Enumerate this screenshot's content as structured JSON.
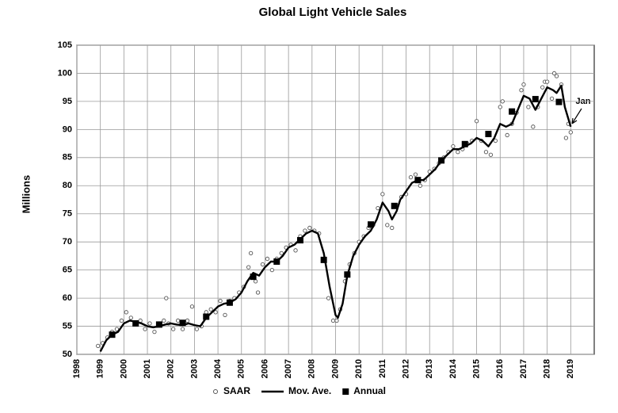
{
  "chart_data": {
    "type": "line",
    "title": "Global Light Vehicle Sales",
    "y_label": "Millions",
    "xlim": [
      1998,
      2020
    ],
    "xticks": [
      1998,
      1999,
      2000,
      2001,
      2002,
      2003,
      2004,
      2005,
      2006,
      2007,
      2008,
      2009,
      2010,
      2011,
      2012,
      2013,
      2014,
      2015,
      2016,
      2017,
      2018,
      2019
    ],
    "ylim": [
      50,
      105
    ],
    "yticks": [
      50,
      55,
      60,
      65,
      70,
      75,
      80,
      85,
      90,
      95,
      100,
      105
    ],
    "grid": true,
    "legend": "bottom",
    "annotation": "Jan",
    "series": [
      {
        "name": "SAAR",
        "marker": "circle",
        "color": "#555555",
        "x": [
          1998.9,
          1999.1,
          1999.3,
          1999.5,
          1999.7,
          1999.9,
          2000.1,
          2000.3,
          2000.5,
          2000.7,
          2000.9,
          2001.1,
          2001.3,
          2001.5,
          2001.7,
          2001.8,
          2001.9,
          2002.1,
          2002.3,
          2002.5,
          2002.7,
          2002.9,
          2003.1,
          2003.3,
          2003.5,
          2003.7,
          2003.9,
          2004.1,
          2004.3,
          2004.5,
          2004.7,
          2004.9,
          2005.1,
          2005.3,
          2005.4,
          2005.6,
          2005.7,
          2005.9,
          2006.1,
          2006.3,
          2006.5,
          2006.7,
          2006.9,
          2007.1,
          2007.3,
          2007.5,
          2007.7,
          2007.9,
          2008.1,
          2008.3,
          2008.5,
          2008.7,
          2008.9,
          2009.05,
          2009.2,
          2009.4,
          2009.6,
          2009.8,
          2010.0,
          2010.2,
          2010.4,
          2010.6,
          2010.8,
          2011.0,
          2011.2,
          2011.4,
          2011.6,
          2011.8,
          2012.0,
          2012.2,
          2012.4,
          2012.6,
          2012.8,
          2013.0,
          2013.2,
          2013.4,
          2013.6,
          2013.8,
          2014.0,
          2014.2,
          2014.4,
          2014.6,
          2014.8,
          2015.0,
          2015.2,
          2015.4,
          2015.6,
          2015.8,
          2016.0,
          2016.1,
          2016.3,
          2016.5,
          2016.7,
          2016.9,
          2017.0,
          2017.2,
          2017.4,
          2017.6,
          2017.8,
          2017.9,
          2018.0,
          2018.2,
          2018.3,
          2018.4,
          2018.6,
          2018.8,
          2018.9,
          2019.0
        ],
        "values": [
          51.5,
          52,
          53,
          54,
          54.5,
          56,
          57.5,
          56.5,
          55.5,
          56,
          54.5,
          55.5,
          54,
          55.5,
          56,
          60,
          55.5,
          54.5,
          56,
          54.5,
          56,
          58.5,
          54.5,
          55,
          57.5,
          58,
          57.5,
          59.5,
          57,
          59.5,
          60,
          61,
          62,
          65.5,
          68,
          63,
          61,
          66,
          67,
          65,
          67,
          68,
          69,
          69.5,
          68.5,
          71,
          72,
          72.5,
          72,
          71.5,
          67,
          60,
          56,
          56,
          58,
          63,
          66,
          68,
          70,
          71,
          72.5,
          73,
          76,
          78.5,
          73,
          72.5,
          76.5,
          78,
          78.5,
          81.5,
          82,
          80,
          81,
          82.5,
          83,
          84,
          85,
          86,
          87,
          86,
          86.5,
          87.5,
          88,
          91.5,
          88,
          86,
          85.5,
          88,
          94,
          95,
          89,
          91,
          93,
          97,
          98,
          94,
          90.5,
          94,
          97.5,
          98.5,
          98.5,
          95.5,
          100,
          99.5,
          98,
          88.5,
          91,
          89.5
        ]
      },
      {
        "name": "Mov. Ave.",
        "color": "#000000",
        "x": [
          1999.0,
          1999.25,
          1999.5,
          1999.75,
          2000.0,
          2000.25,
          2000.5,
          2000.75,
          2001.0,
          2001.25,
          2001.5,
          2001.75,
          2002.0,
          2002.25,
          2002.5,
          2002.75,
          2003.0,
          2003.25,
          2003.5,
          2003.75,
          2004.0,
          2004.25,
          2004.5,
          2004.75,
          2005.0,
          2005.25,
          2005.5,
          2005.75,
          2006.0,
          2006.25,
          2006.5,
          2006.75,
          2007.0,
          2007.25,
          2007.5,
          2007.75,
          2008.0,
          2008.25,
          2008.5,
          2008.75,
          2009.0,
          2009.1,
          2009.3,
          2009.5,
          2009.75,
          2010.0,
          2010.25,
          2010.5,
          2010.75,
          2011.0,
          2011.25,
          2011.4,
          2011.6,
          2011.75,
          2012.0,
          2012.25,
          2012.5,
          2012.75,
          2013.0,
          2013.25,
          2013.5,
          2013.75,
          2014.0,
          2014.25,
          2014.5,
          2014.75,
          2015.0,
          2015.25,
          2015.5,
          2015.75,
          2016.0,
          2016.25,
          2016.5,
          2016.75,
          2017.0,
          2017.25,
          2017.5,
          2017.75,
          2018.0,
          2018.25,
          2018.4,
          2018.6,
          2018.75,
          2019.0
        ],
        "values": [
          50.5,
          52.5,
          53.5,
          54,
          55.5,
          56,
          55.8,
          55.5,
          55,
          54.8,
          55,
          55.3,
          55.5,
          55.3,
          55.2,
          55.5,
          55.2,
          55,
          56.5,
          57.5,
          58.5,
          59,
          59.2,
          59.8,
          61,
          63,
          64.5,
          64,
          65.5,
          66.5,
          66.5,
          67.5,
          69,
          69.5,
          70.5,
          71.5,
          72,
          71.5,
          68,
          62,
          57,
          56.5,
          59,
          64,
          67.5,
          69.5,
          71,
          72,
          74,
          77,
          75.5,
          74,
          75.5,
          77.5,
          79,
          80.5,
          81,
          81,
          82,
          83,
          84.5,
          85.5,
          86.5,
          86.5,
          87,
          87.5,
          88.5,
          88,
          87,
          88.5,
          91,
          90.5,
          91,
          93.5,
          96,
          95.5,
          93.5,
          95.5,
          97.5,
          97,
          96.5,
          97.8,
          94,
          90.5
        ]
      },
      {
        "name": "Annual",
        "marker": "square",
        "color": "#000000",
        "x": [
          1999.5,
          2000.5,
          2001.5,
          2002.5,
          2003.5,
          2004.5,
          2005.5,
          2006.5,
          2007.5,
          2008.5,
          2009.5,
          2010.5,
          2011.5,
          2012.5,
          2013.5,
          2014.5,
          2015.5,
          2016.5,
          2017.5,
          2018.5
        ],
        "values": [
          53.5,
          55.5,
          55.3,
          55.6,
          56.7,
          59.2,
          63.8,
          66.5,
          70.3,
          66.8,
          64.2,
          73.1,
          76.4,
          81.0,
          84.5,
          87.4,
          89.2,
          93.2,
          95.4,
          94.9
        ]
      }
    ]
  }
}
